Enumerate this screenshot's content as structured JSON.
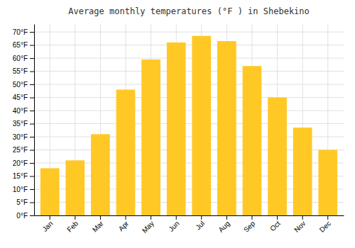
{
  "chart_data": {
    "type": "bar",
    "title": "Average monthly temperatures (°F ) in Shebekino",
    "categories": [
      "Jan",
      "Feb",
      "Mar",
      "Apr",
      "May",
      "Jun",
      "Jul",
      "Aug",
      "Sep",
      "Oct",
      "Nov",
      "Dec"
    ],
    "values": [
      18,
      21,
      31,
      48,
      59.5,
      66,
      68.5,
      66.5,
      57,
      45,
      33.5,
      25
    ],
    "color": "#FFC825",
    "ylim": [
      0,
      73
    ],
    "yticks": [
      {
        "value": 0,
        "label": "0°F"
      },
      {
        "value": 5,
        "label": "5°F"
      },
      {
        "value": 10,
        "label": "10°F"
      },
      {
        "value": 15,
        "label": "15°F"
      },
      {
        "value": 20,
        "label": "20°F"
      },
      {
        "value": 25,
        "label": "25°F"
      },
      {
        "value": 30,
        "label": "30°F"
      },
      {
        "value": 35,
        "label": "35°F"
      },
      {
        "value": 40,
        "label": "40°F"
      },
      {
        "value": 45,
        "label": "45°F"
      },
      {
        "value": 50,
        "label": "50°F"
      },
      {
        "value": 55,
        "label": "55°F"
      },
      {
        "value": 60,
        "label": "60°F"
      },
      {
        "value": 65,
        "label": "65°F"
      },
      {
        "value": 70,
        "label": "70°F"
      }
    ],
    "grid": true
  }
}
